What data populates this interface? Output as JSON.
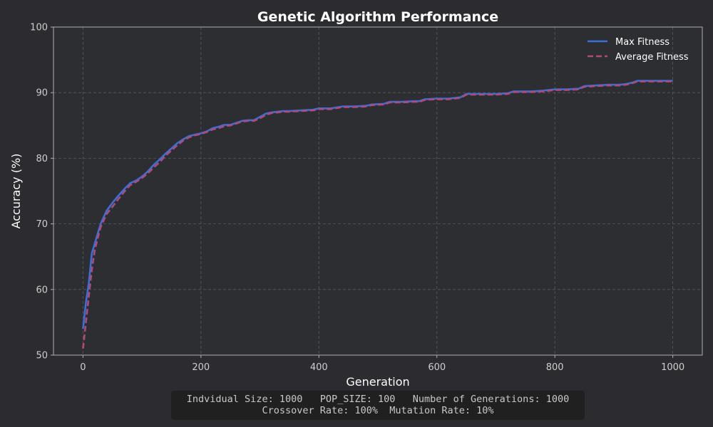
{
  "chart_data": {
    "type": "line",
    "title": "Genetic Algorithm Performance",
    "xlabel": "Generation",
    "ylabel": "Accuracy (%)",
    "xlim": [
      -50,
      1050
    ],
    "ylim": [
      50,
      100
    ],
    "xticks": [
      0,
      200,
      400,
      600,
      800,
      1000
    ],
    "yticks": [
      50,
      60,
      70,
      80,
      90,
      100
    ],
    "grid": true,
    "legend_position": "top-right",
    "series": [
      {
        "name": "Max Fitness",
        "color": "#3a6fd8",
        "style": "solid",
        "points": [
          [
            0,
            54
          ],
          [
            5,
            58
          ],
          [
            10,
            61
          ],
          [
            15,
            65.5
          ],
          [
            20,
            67
          ],
          [
            25,
            68.5
          ],
          [
            30,
            70
          ],
          [
            35,
            71
          ],
          [
            40,
            72
          ],
          [
            50,
            73.2
          ],
          [
            60,
            74.3
          ],
          [
            70,
            75.3
          ],
          [
            80,
            76.2
          ],
          [
            90,
            76.6
          ],
          [
            100,
            77.2
          ],
          [
            110,
            78
          ],
          [
            120,
            79
          ],
          [
            130,
            79.8
          ],
          [
            140,
            80.7
          ],
          [
            150,
            81.5
          ],
          [
            160,
            82.3
          ],
          [
            170,
            82.9
          ],
          [
            180,
            83.4
          ],
          [
            190,
            83.6
          ],
          [
            200,
            83.8
          ],
          [
            210,
            84.1
          ],
          [
            220,
            84.6
          ],
          [
            230,
            84.8
          ],
          [
            240,
            85.1
          ],
          [
            250,
            85.1
          ],
          [
            260,
            85.4
          ],
          [
            270,
            85.7
          ],
          [
            280,
            85.8
          ],
          [
            290,
            85.8
          ],
          [
            300,
            86.3
          ],
          [
            310,
            86.8
          ],
          [
            320,
            87
          ],
          [
            330,
            87.1
          ],
          [
            340,
            87.2
          ],
          [
            350,
            87.2
          ],
          [
            370,
            87.3
          ],
          [
            390,
            87.4
          ],
          [
            400,
            87.6
          ],
          [
            420,
            87.6
          ],
          [
            440,
            87.9
          ],
          [
            460,
            87.9
          ],
          [
            480,
            88
          ],
          [
            490,
            88.2
          ],
          [
            510,
            88.3
          ],
          [
            520,
            88.6
          ],
          [
            540,
            88.6
          ],
          [
            560,
            88.7
          ],
          [
            570,
            88.7
          ],
          [
            580,
            89
          ],
          [
            600,
            89.1
          ],
          [
            620,
            89.1
          ],
          [
            640,
            89.3
          ],
          [
            650,
            89.8
          ],
          [
            660,
            89.8
          ],
          [
            680,
            89.8
          ],
          [
            700,
            89.8
          ],
          [
            720,
            89.9
          ],
          [
            730,
            90.2
          ],
          [
            760,
            90.2
          ],
          [
            780,
            90.3
          ],
          [
            800,
            90.5
          ],
          [
            820,
            90.5
          ],
          [
            840,
            90.6
          ],
          [
            850,
            91
          ],
          [
            870,
            91.1
          ],
          [
            890,
            91.2
          ],
          [
            910,
            91.2
          ],
          [
            920,
            91.3
          ],
          [
            930,
            91.5
          ],
          [
            940,
            91.8
          ],
          [
            960,
            91.8
          ],
          [
            980,
            91.8
          ],
          [
            1000,
            91.8
          ]
        ]
      },
      {
        "name": "Average Fitness",
        "color": "#b04a7a",
        "style": "dashed",
        "points": [
          [
            0,
            51
          ],
          [
            5,
            55
          ],
          [
            10,
            59
          ],
          [
            15,
            63
          ],
          [
            20,
            66
          ],
          [
            25,
            67.8
          ],
          [
            30,
            69.5
          ],
          [
            35,
            70.5
          ],
          [
            40,
            71.5
          ],
          [
            50,
            72.6
          ],
          [
            60,
            73.8
          ],
          [
            70,
            74.9
          ],
          [
            80,
            75.9
          ],
          [
            90,
            76.4
          ],
          [
            100,
            77
          ],
          [
            110,
            77.7
          ],
          [
            120,
            78.6
          ],
          [
            130,
            79.4
          ],
          [
            140,
            80.4
          ],
          [
            150,
            81.2
          ],
          [
            160,
            82
          ],
          [
            170,
            82.7
          ],
          [
            180,
            83.2
          ],
          [
            190,
            83.5
          ],
          [
            200,
            83.7
          ],
          [
            210,
            84
          ],
          [
            220,
            84.4
          ],
          [
            230,
            84.6
          ],
          [
            240,
            84.9
          ],
          [
            250,
            85
          ],
          [
            260,
            85.3
          ],
          [
            270,
            85.6
          ],
          [
            280,
            85.7
          ],
          [
            290,
            85.7
          ],
          [
            300,
            86.1
          ],
          [
            310,
            86.6
          ],
          [
            320,
            86.9
          ],
          [
            330,
            87
          ],
          [
            340,
            87.1
          ],
          [
            350,
            87.1
          ],
          [
            370,
            87.2
          ],
          [
            390,
            87.3
          ],
          [
            400,
            87.5
          ],
          [
            420,
            87.5
          ],
          [
            440,
            87.8
          ],
          [
            460,
            87.8
          ],
          [
            480,
            87.9
          ],
          [
            490,
            88.1
          ],
          [
            510,
            88.2
          ],
          [
            520,
            88.5
          ],
          [
            540,
            88.5
          ],
          [
            560,
            88.6
          ],
          [
            570,
            88.6
          ],
          [
            580,
            88.9
          ],
          [
            600,
            89
          ],
          [
            620,
            89
          ],
          [
            640,
            89.2
          ],
          [
            650,
            89.7
          ],
          [
            660,
            89.7
          ],
          [
            680,
            89.7
          ],
          [
            700,
            89.7
          ],
          [
            720,
            89.8
          ],
          [
            730,
            90.1
          ],
          [
            760,
            90.1
          ],
          [
            780,
            90.2
          ],
          [
            800,
            90.4
          ],
          [
            820,
            90.4
          ],
          [
            840,
            90.5
          ],
          [
            850,
            90.9
          ],
          [
            870,
            91
          ],
          [
            890,
            91.1
          ],
          [
            910,
            91.1
          ],
          [
            920,
            91.2
          ],
          [
            930,
            91.4
          ],
          [
            940,
            91.7
          ],
          [
            960,
            91.7
          ],
          [
            980,
            91.7
          ],
          [
            1000,
            91.7
          ]
        ]
      }
    ]
  },
  "info": {
    "line1": "Indvidual Size: 1000   POP_SIZE: 100   Number of Generations: 1000",
    "line2": "Crossover Rate: 100%  Mutation Rate: 10%"
  },
  "colors": {
    "background": "#2b2b30",
    "axes_background": "#2d2e32",
    "text": "#ffffff",
    "tick_text": "#cfcfcf",
    "spine": "#b0b0b0",
    "grid": "#5a5a5a"
  }
}
